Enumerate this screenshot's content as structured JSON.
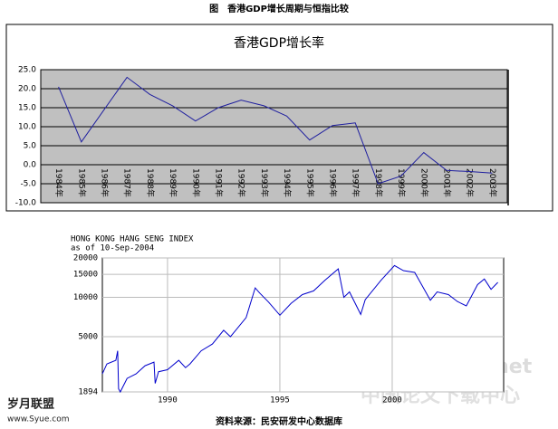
{
  "title": "图　香港GDP增长周期与恒指比较",
  "chart_data": [
    {
      "type": "line",
      "title": "香港GDP增长率",
      "categories": [
        "1984年",
        "1985年",
        "1986年",
        "1987年",
        "1988年",
        "1989年",
        "1990年",
        "1991年",
        "1992年",
        "1993年",
        "1994年",
        "1995年",
        "1996年",
        "1997年",
        "1998年",
        "1999年",
        "2000年",
        "2001年",
        "2002年",
        "2003年"
      ],
      "values": [
        20.5,
        6,
        14.5,
        23,
        18.5,
        15.5,
        11.5,
        15,
        17,
        15.5,
        12.8,
        6.5,
        10.3,
        11,
        -5,
        -3,
        3.2,
        -1.5,
        -1.8,
        -2.2
      ],
      "color": "#1f1f9f",
      "plot_background": "#c0c0c0",
      "grid": true,
      "ylim": [
        -10,
        25
      ],
      "yticks": [
        {
          "value": 25,
          "label": "25.0"
        },
        {
          "value": 20,
          "label": "20.0"
        },
        {
          "value": 15,
          "label": "15.0"
        },
        {
          "value": 10,
          "label": "10.0"
        },
        {
          "value": 5,
          "label": "5.0"
        },
        {
          "value": 0,
          "label": "0.0"
        },
        {
          "value": -5,
          "label": "-5.0"
        },
        {
          "value": -10,
          "label": "-10.0"
        }
      ]
    },
    {
      "type": "line",
      "title": "HONG KONG HANG SENG INDEX",
      "subtitle": "as of 10-Sep-2004",
      "x": [
        1987.1,
        1987.3,
        1987.7,
        1987.78,
        1987.82,
        1987.9,
        1988.2,
        1988.6,
        1989.0,
        1989.4,
        1989.45,
        1989.6,
        1990.0,
        1990.5,
        1990.8,
        1991.0,
        1991.5,
        1992.0,
        1992.5,
        1992.8,
        1993.0,
        1993.5,
        1993.9,
        1994.1,
        1994.5,
        1995.0,
        1995.5,
        1996.0,
        1996.5,
        1997.0,
        1997.6,
        1997.85,
        1998.1,
        1998.6,
        1998.8,
        1999.5,
        2000.1,
        2000.5,
        2001.0,
        2001.7,
        2002.0,
        2002.5,
        2002.9,
        2003.3,
        2003.8,
        2004.1,
        2004.4,
        2004.7
      ],
      "values": [
        2600,
        3100,
        3300,
        3900,
        2000,
        1894,
        2400,
        2600,
        3000,
        3200,
        2200,
        2700,
        2800,
        3300,
        2900,
        3100,
        3900,
        4400,
        5600,
        5000,
        5500,
        7000,
        11800,
        10800,
        9200,
        7300,
        9000,
        10500,
        11200,
        13500,
        16500,
        10000,
        11000,
        7400,
        9600,
        13500,
        17500,
        16000,
        15500,
        9500,
        11000,
        10500,
        9300,
        8600,
        12500,
        13800,
        11500,
        13000
      ],
      "color": "#0000cc",
      "log_scale": true,
      "grid": true,
      "xlim": [
        1987.1,
        2004.96
      ],
      "xticks": [
        1990,
        1995,
        2000
      ],
      "ylim": [
        1894,
        20000
      ],
      "yticks": [
        1894,
        5000,
        10000,
        15000,
        20000
      ]
    }
  ],
  "source": "资料来源：民安研发中心数据库",
  "watermarks": [
    "岁月联盟",
    "www.Syue.com",
    "www.studa.net",
    "中国论文下载中心"
  ]
}
